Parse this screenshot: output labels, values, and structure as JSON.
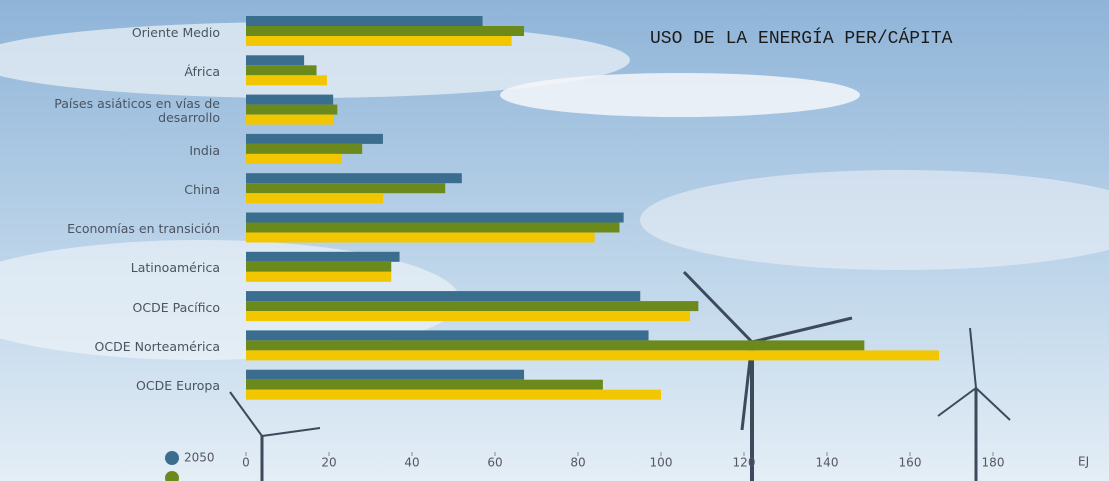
{
  "chart_data": {
    "type": "bar",
    "orientation": "horizontal",
    "title": "USO DE LA ENERGÍA PER/CÁPITA",
    "x_label": "EJ",
    "categories": [
      "Oriente Medio",
      "África",
      "Países asiáticos en vías de desarrollo",
      "India",
      "China",
      "Economías en transición",
      "Latinoamérica",
      "OCDE Pacífico",
      "OCDE Norteamérica",
      "OCDE Europa"
    ],
    "series": [
      {
        "name": "2050",
        "color": "#3a6d8e",
        "values": [
          57,
          14,
          21,
          33,
          52,
          91,
          37,
          95,
          97,
          67
        ]
      },
      {
        "color": "#6c8a1c",
        "values": [
          67,
          17,
          22,
          28,
          48,
          90,
          35,
          109,
          149,
          86
        ]
      },
      {
        "color": "#f2c600",
        "values": [
          64,
          19.5,
          21,
          23,
          33,
          84,
          35,
          107,
          167,
          100
        ]
      }
    ],
    "xlim": [
      0,
      180
    ],
    "xticks": [
      0,
      20,
      40,
      60,
      80,
      100,
      120,
      140,
      160,
      180
    ]
  }
}
